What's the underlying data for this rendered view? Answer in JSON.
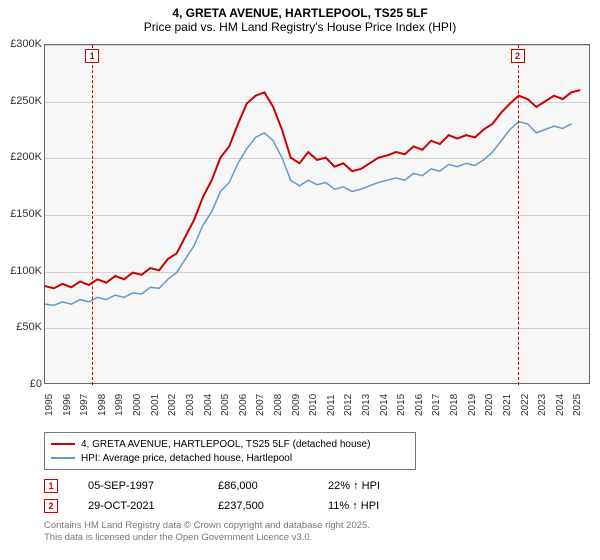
{
  "title_main": "4, GRETA AVENUE, HARTLEPOOL, TS25 5LF",
  "title_sub": "Price paid vs. HM Land Registry's House Price Index (HPI)",
  "chart": {
    "type": "line",
    "background_color": "#f7f7f7",
    "grid_color": "#d0d0d0",
    "border_color": "#666666",
    "ylim": [
      0,
      300000
    ],
    "ytick_step": 50000,
    "yticks": [
      "£0",
      "£50K",
      "£100K",
      "£150K",
      "£200K",
      "£250K",
      "£300K"
    ],
    "xlim": [
      1995,
      2026
    ],
    "xticks": [
      1995,
      1996,
      1997,
      1998,
      1999,
      2000,
      2001,
      2002,
      2003,
      2004,
      2005,
      2006,
      2007,
      2008,
      2009,
      2010,
      2011,
      2012,
      2013,
      2014,
      2015,
      2016,
      2017,
      2018,
      2019,
      2020,
      2021,
      2022,
      2023,
      2024,
      2025
    ],
    "series": [
      {
        "name": "4, GRETA AVENUE, HARTLEPOOL, TS25 5LF (detached house)",
        "color": "#cc0000",
        "line_width": 2,
        "x": [
          1995,
          1995.5,
          1996,
          1996.5,
          1997,
          1997.5,
          1998,
          1998.5,
          1999,
          1999.5,
          2000,
          2000.5,
          2001,
          2001.5,
          2002,
          2002.5,
          2003,
          2003.5,
          2004,
          2004.5,
          2005,
          2005.5,
          2006,
          2006.5,
          2007,
          2007.5,
          2008,
          2008.5,
          2009,
          2009.5,
          2010,
          2010.5,
          2011,
          2011.5,
          2012,
          2012.5,
          2013,
          2013.5,
          2014,
          2014.5,
          2015,
          2015.5,
          2016,
          2016.5,
          2017,
          2017.5,
          2018,
          2018.5,
          2019,
          2019.5,
          2020,
          2020.5,
          2021,
          2021.5,
          2022,
          2022.5,
          2023,
          2023.5,
          2024,
          2024.5,
          2025,
          2025.5
        ],
        "y": [
          86000,
          84000,
          88000,
          85000,
          90000,
          87000,
          92000,
          89000,
          95000,
          92000,
          98000,
          96000,
          102000,
          100000,
          110000,
          115000,
          130000,
          145000,
          165000,
          180000,
          200000,
          210000,
          230000,
          248000,
          255000,
          258000,
          245000,
          225000,
          200000,
          195000,
          205000,
          198000,
          200000,
          192000,
          195000,
          188000,
          190000,
          195000,
          200000,
          202000,
          205000,
          203000,
          210000,
          207000,
          215000,
          212000,
          220000,
          217000,
          220000,
          218000,
          225000,
          230000,
          240000,
          248000,
          255000,
          252000,
          245000,
          250000,
          255000,
          252000,
          258000,
          260000
        ]
      },
      {
        "name": "HPI: Average price, detached house, Hartlepool",
        "color": "#6699cc",
        "line_width": 1.5,
        "x": [
          1995,
          1995.5,
          1996,
          1996.5,
          1997,
          1997.5,
          1998,
          1998.5,
          1999,
          1999.5,
          2000,
          2000.5,
          2001,
          2001.5,
          2002,
          2002.5,
          2003,
          2003.5,
          2004,
          2004.5,
          2005,
          2005.5,
          2006,
          2006.5,
          2007,
          2007.5,
          2008,
          2008.5,
          2009,
          2009.5,
          2010,
          2010.5,
          2011,
          2011.5,
          2012,
          2012.5,
          2013,
          2013.5,
          2014,
          2014.5,
          2015,
          2015.5,
          2016,
          2016.5,
          2017,
          2017.5,
          2018,
          2018.5,
          2019,
          2019.5,
          2020,
          2020.5,
          2021,
          2021.5,
          2022,
          2022.5,
          2023,
          2023.5,
          2024,
          2024.5,
          2025
        ],
        "y": [
          70000,
          69000,
          72000,
          70000,
          74000,
          72000,
          76000,
          74000,
          78000,
          76000,
          80000,
          79000,
          85000,
          84000,
          92000,
          98000,
          110000,
          122000,
          140000,
          152000,
          170000,
          178000,
          195000,
          208000,
          218000,
          222000,
          215000,
          200000,
          180000,
          175000,
          180000,
          176000,
          178000,
          172000,
          174000,
          170000,
          172000,
          175000,
          178000,
          180000,
          182000,
          180000,
          186000,
          184000,
          190000,
          188000,
          194000,
          192000,
          195000,
          193000,
          198000,
          205000,
          215000,
          225000,
          232000,
          230000,
          222000,
          225000,
          228000,
          226000,
          230000
        ]
      }
    ],
    "markers": [
      {
        "id": "1",
        "x": 1997.68,
        "color": "#cc0000"
      },
      {
        "id": "2",
        "x": 2021.83,
        "color": "#cc0000"
      }
    ]
  },
  "legend": {
    "items": [
      {
        "label": "4, GRETA AVENUE, HARTLEPOOL, TS25 5LF (detached house)",
        "color": "#cc0000",
        "weight": 2
      },
      {
        "label": "HPI: Average price, detached house, Hartlepool",
        "color": "#6699cc",
        "weight": 1.5
      }
    ]
  },
  "datapoints": [
    {
      "id": "1",
      "date": "05-SEP-1997",
      "price": "£86,000",
      "hpi": "22% ↑ HPI"
    },
    {
      "id": "2",
      "date": "29-OCT-2021",
      "price": "£237,500",
      "hpi": "11% ↑ HPI"
    }
  ],
  "footer_line1": "Contains HM Land Registry data © Crown copyright and database right 2025.",
  "footer_line2": "This data is licensed under the Open Government Licence v3.0."
}
